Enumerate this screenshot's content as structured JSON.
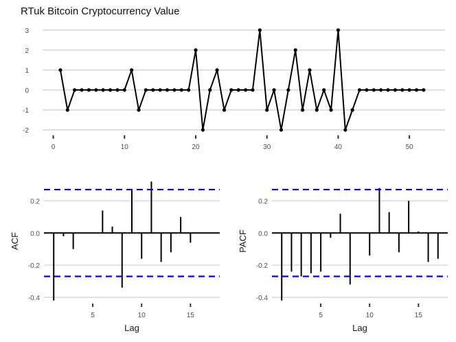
{
  "chart_data": [
    {
      "type": "line",
      "title": "RTuk Bitcoin Cryptocurrency Value",
      "xlabel": "",
      "ylabel": "",
      "xlim": [
        -1.5,
        55
      ],
      "ylim": [
        -2.2,
        3.2
      ],
      "xticks": [
        "0",
        "10",
        "20",
        "30",
        "40",
        "50"
      ],
      "yticks": [
        "3",
        "2",
        "1",
        "0",
        "-1",
        "-2"
      ],
      "grid": true,
      "x": [
        1,
        2,
        3,
        4,
        5,
        6,
        7,
        8,
        9,
        10,
        11,
        12,
        13,
        14,
        15,
        16,
        17,
        18,
        19,
        20,
        21,
        22,
        23,
        24,
        25,
        26,
        27,
        28,
        29,
        30,
        31,
        32,
        33,
        34,
        35,
        36,
        37,
        38,
        39,
        40,
        41,
        42,
        43,
        44,
        45,
        46,
        47,
        48,
        49,
        50,
        51,
        52
      ],
      "values": [
        1,
        -1,
        0,
        0,
        0,
        0,
        0,
        0,
        0,
        0,
        1,
        -1,
        0,
        0,
        0,
        0,
        0,
        0,
        0,
        2,
        -2,
        0,
        1,
        -1,
        0,
        0,
        0,
        0,
        3,
        -1,
        0,
        -2,
        0,
        2,
        -1,
        1,
        -1,
        0,
        -1,
        3,
        -2,
        -1,
        0,
        0,
        0,
        0,
        0,
        0,
        0,
        0,
        0,
        0
      ]
    },
    {
      "type": "bar",
      "title": "",
      "xlabel": "Lag",
      "ylabel": "ACF",
      "xlim": [
        0,
        18
      ],
      "ylim": [
        -0.43,
        0.33
      ],
      "xticks": [
        "5",
        "10",
        "15"
      ],
      "yticks": [
        "0.2",
        "0.0",
        "-0.2",
        "-0.4"
      ],
      "confidence_band": [
        0.27,
        -0.27
      ],
      "grid": true,
      "lags": [
        1,
        2,
        3,
        4,
        5,
        6,
        7,
        8,
        9,
        10,
        11,
        12,
        13,
        14,
        15
      ],
      "values": [
        -0.42,
        -0.02,
        -0.1,
        0.0,
        0.0,
        0.14,
        0.04,
        -0.34,
        0.27,
        -0.16,
        0.32,
        -0.18,
        -0.12,
        0.1,
        -0.06
      ]
    },
    {
      "type": "bar",
      "title": "",
      "xlabel": "Lag",
      "ylabel": "PACF",
      "xlim": [
        0,
        18
      ],
      "ylim": [
        -0.43,
        0.33
      ],
      "xticks": [
        "5",
        "10",
        "15"
      ],
      "yticks": [
        "0.2",
        "0.0",
        "-0.2",
        "-0.4"
      ],
      "confidence_band": [
        0.27,
        -0.27
      ],
      "grid": true,
      "lags": [
        1,
        2,
        3,
        4,
        5,
        6,
        7,
        8,
        9,
        10,
        11,
        12,
        13,
        14,
        15,
        16,
        17
      ],
      "values": [
        -0.42,
        -0.24,
        -0.27,
        -0.25,
        -0.24,
        -0.03,
        0.12,
        -0.32,
        0.0,
        -0.14,
        0.28,
        0.13,
        -0.12,
        0.2,
        0.01,
        -0.18,
        -0.16
      ]
    }
  ],
  "colors": {
    "line": "#000000",
    "bars": "#000000",
    "grid": "#d9d9d9",
    "zero_line": "#000000",
    "confidence": "#0000ff",
    "tick_text": "#4d4d4d",
    "axis_title": "#1a1a1a"
  }
}
